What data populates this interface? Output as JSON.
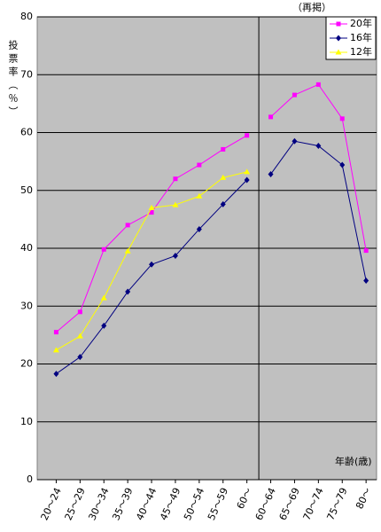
{
  "chart_data": {
    "type": "line",
    "ylabel": "投票率（％）",
    "xlabel": "年齢(歳)",
    "ylim": [
      0,
      80
    ],
    "yticks": [
      0,
      10,
      20,
      30,
      40,
      50,
      60,
      70,
      80
    ],
    "grid": true,
    "legend": "upper right",
    "series": [
      {
        "name": "20年",
        "color": "#ff00ff",
        "marker": "square"
      },
      {
        "name": "16年",
        "color": "#000080",
        "marker": "diamond"
      },
      {
        "name": "12年",
        "color": "#ffff00",
        "marker": "triangle"
      }
    ],
    "groups": [
      {
        "categories": [
          "20～24",
          "25～29",
          "30～34",
          "35～39",
          "40～44",
          "45～49",
          "50～54",
          "55～59",
          "60～"
        ],
        "series": [
          {
            "values": [
              25.5,
              29.0,
              39.8,
              44.0,
              46.2,
              52.0,
              54.4,
              57.1,
              59.5
            ]
          },
          {
            "values": [
              18.3,
              21.2,
              26.6,
              32.5,
              37.2,
              38.7,
              43.3,
              47.6,
              51.8
            ]
          },
          {
            "values": [
              22.4,
              24.8,
              31.4,
              39.5,
              47.0,
              47.5,
              49.0,
              52.2,
              53.2
            ]
          }
        ]
      },
      {
        "note": "（再掲）",
        "categories": [
          "60～64",
          "65～69",
          "70～74",
          "75～79",
          "80～"
        ],
        "series": [
          {
            "values": [
              62.7,
              66.5,
              68.3,
              62.4,
              39.6
            ]
          },
          {
            "values": [
              52.8,
              58.5,
              57.7,
              54.4,
              34.4
            ]
          },
          {
            "values": [
              null,
              null,
              null,
              null,
              null
            ]
          }
        ]
      }
    ]
  }
}
